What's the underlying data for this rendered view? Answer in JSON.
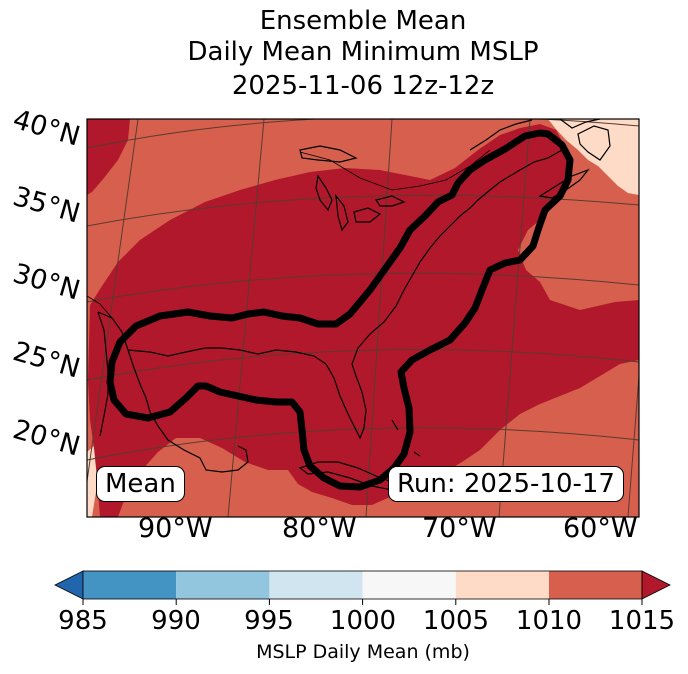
{
  "title": {
    "line1": "Ensemble Mean",
    "line2": "Daily Mean Minimum MSLP",
    "line3": "2025-11-06 12z-12z"
  },
  "map": {
    "lat_labels": [
      "40°N",
      "35°N",
      "30°N",
      "25°N",
      "20°N"
    ],
    "lon_labels": [
      "90°W",
      "80°W",
      "70°W",
      "60°W"
    ],
    "mean_label": "Mean",
    "run_label": "Run: 2025-10-17"
  },
  "colorbar": {
    "label": "MSLP Daily Mean (mb)",
    "ticks": [
      "985",
      "990",
      "995",
      "1000",
      "1005",
      "1010",
      "1015"
    ],
    "colors": [
      "#4393c3",
      "#92c5de",
      "#d1e5f0",
      "#f7f7f7",
      "#fddbc7",
      "#d6604d"
    ],
    "under_color": "#2166ac",
    "over_color": "#b2182b"
  },
  "field_colors": {
    "low": "#b2182b",
    "mid": "#d6604d",
    "high": "#fddbc7"
  }
}
